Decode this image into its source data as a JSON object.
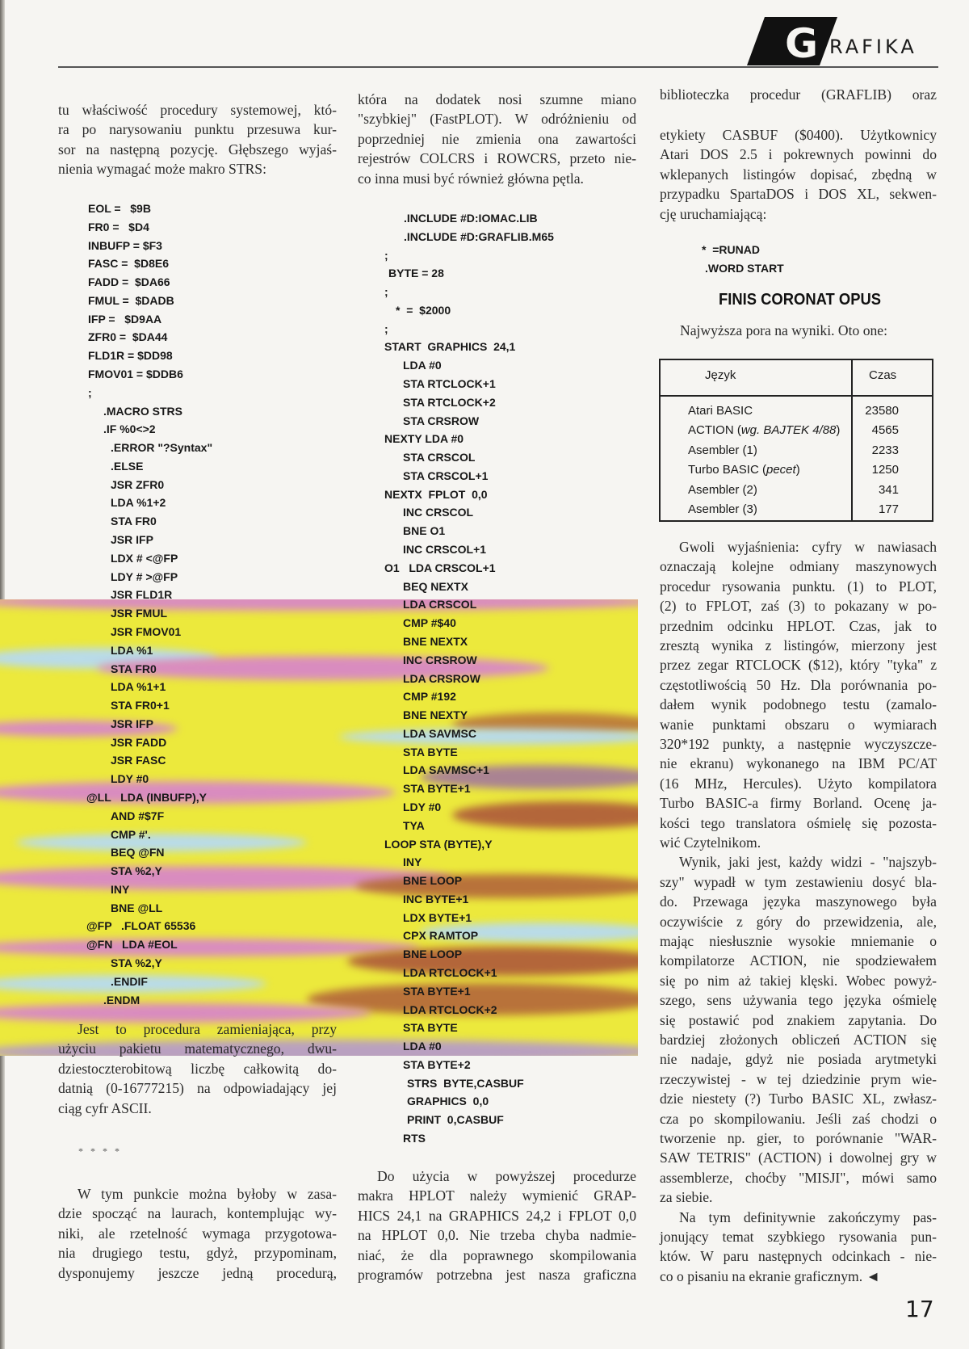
{
  "header": {
    "logo_letter": "G",
    "section": "RAFIKA"
  },
  "col1": {
    "p1": [
      "tu właściwość procedury systemowej, któ-",
      "ra po narysowaniu punktu przesuwa kur-",
      "sor na następną pozycję. Głębszego wyjaś-",
      "nienia wymagać może makro STRS:"
    ],
    "code": [
      "EOL =   $9B",
      "FR0 =   $D4",
      "INBUFP = $F3",
      "FASC =  $D8E6",
      "FADD =  $DA66",
      "FMUL =  $DADB",
      "IFP =   $D9AA",
      "ZFR0 =  $DA44",
      "FLD1R = $DD98",
      "FMOV01 = $DDB6",
      ";",
      ".MACRO STRS",
      ".IF %0<>2",
      ".ERROR \"?Syntax\"",
      ".ELSE",
      "JSR ZFR0",
      "LDA %1+2",
      "STA FR0",
      "JSR IFP",
      "LDX # <@FP",
      "LDY # >@FP",
      "JSR FLD1R",
      "JSR FMUL",
      "JSR FMOV01",
      "LDA %1",
      "STA FR0",
      "LDA %1+1",
      "STA FR0+1",
      "JSR IFP",
      "JSR FADD",
      "JSR FASC",
      "LDY #0",
      "@LL   LDA (INBUFP),Y",
      "AND #$7F",
      "CMP #'.",
      "BEQ @FN",
      "STA %2,Y",
      "INY",
      "BNE @LL",
      "@FP   .FLOAT 65536",
      "@FN   LDA #EOL",
      "STA %2,Y",
      ".ENDIF",
      ".ENDM"
    ],
    "p2": [
      "Jest to procedura zamieniająca, przy",
      "użyciu pakietu matematycznego, dwu-",
      "dziestoczterobitową liczbę całkowitą do-",
      "datnią (0-16777215) na odpowiadający jej",
      "ciąg cyfr ASCII."
    ],
    "separator": "* * * *",
    "p3": [
      "W tym punkcie można byłoby w zasa-",
      "dzie spocząć na laurach, kontemplując wy-",
      "niki, ale rzetelność wymaga przygotowa-",
      "nia drugiego testu, gdyż, przypominam,",
      "dysponujemy jeszcze jedną procedurą,"
    ]
  },
  "col2": {
    "p1": [
      "która na dodatek nosi szumne miano",
      "\"szybkiej\" (FastPLOT). W odróżnieniu od",
      "poprzedniej nie zmienia ona zawartości",
      "rejestrów COLCRS i ROWCRS, przeto nie-",
      "co inna musi być również główna pętla."
    ],
    "code": [
      ".INCLUDE #D:IOMAC.LIB",
      ".INCLUDE #D:GRAFLIB.M65",
      ";",
      "BYTE = 28",
      ";",
      "*  =  $2000",
      ";",
      "START  GRAPHICS  24,1",
      "LDA #0",
      "STA RTCLOCK+1",
      "STA RTCLOCK+2",
      "STA CRSROW",
      "NEXTY LDA #0",
      "STA CRSCOL",
      "STA CRSCOL+1",
      "NEXTX  FPLOT  0,0",
      "INC CRSCOL",
      "BNE O1",
      "INC CRSCOL+1",
      "O1   LDA CRSCOL+1",
      "BEQ NEXTX",
      "LDA CRSCOL",
      "CMP #$40",
      "BNE NEXTX",
      "INC CRSROW",
      "LDA CRSROW",
      "CMP #192",
      "BNE NEXTY",
      "LDA SAVMSC",
      "STA BYTE",
      "LDA SAVMSC+1",
      "STA BYTE+1",
      "LDY #0",
      "TYA",
      "LOOP STA (BYTE),Y",
      "INY",
      "BNE LOOP",
      "INC BYTE+1",
      "LDX BYTE+1",
      "CPX RAMTOP",
      "BNE LOOP",
      "LDA RTCLOCK+1",
      "STA BYTE+1",
      "LDA RTCLOCK+2",
      "STA BYTE",
      "LDA #0",
      "STA BYTE+2",
      "STRS  BYTE,CASBUF",
      "GRAPHICS  0,0",
      "PRINT  0,CASBUF",
      "RTS"
    ],
    "p2": [
      "Do użycia w powyższej procedurze",
      "makra HPLOT należy wymienić GRAP-",
      "HICS 24,1 na GRAPHICS 24,2 i FPLOT 0,0",
      "na HPLOT 0,0. Nie trzeba chyba nadmie-",
      "niać, że dla poprawnego skompilowania",
      "programów potrzebna jest nasza graficzna"
    ]
  },
  "col3": {
    "p0": [
      "biblioteczka procedur (GRAFLIB) oraz"
    ],
    "p1": [
      "etykiety CASBUF ($0400). Użytkownicy",
      "Atari DOS 2.5 i pokrewnych powinni do",
      "wklepanych listingów dopisać, zbędną w",
      "przypadku SpartaDOS i DOS XL, sekwen-",
      "cję uruchamiającą:"
    ],
    "code": [
      "*  =RUNAD",
      ".WORD START"
    ],
    "heading": "FINIS CORONAT OPUS",
    "intro": [
      "Najwyższa pora na wyniki. Oto one:"
    ],
    "table": {
      "headers": [
        "Język",
        "Czas"
      ],
      "rows": [
        {
          "lang": "Atari BASIC",
          "note": "",
          "time": "23580"
        },
        {
          "lang": "ACTION (",
          "note": "wg. BAJTEK 4/88",
          "close": ")",
          "time": "4565"
        },
        {
          "lang": "Asembler (1)",
          "note": "",
          "time": "2233"
        },
        {
          "lang": "Turbo BASIC (",
          "note": "pecet",
          "close": ")",
          "time": "1250"
        },
        {
          "lang": "Asembler (2)",
          "note": "",
          "time": "341"
        },
        {
          "lang": "Asembler (3)",
          "note": "",
          "time": "177"
        }
      ]
    },
    "p2": [
      "Gwoli wyjaśnienia: cyfry w nawiasach",
      "oznaczają kolejne odmiany maszynowych",
      "procedur rysowania punktu. (1) to PLOT,",
      "(2) to FPLOT, zaś (3) to pokazany w po-",
      "przednim odcinku HPLOT. Czas, jak to",
      "zresztą wynika z listingów, mierzony jest",
      "przez zegar RTCLOCK ($12), który \"tyka\" z",
      "częstotliwością 50 Hz. Dla porównania po-",
      "dałem wynik podobnego testu (zamalo-",
      "wanie punktami obszaru o wymiarach",
      "320*192 punkty, a następnie wyczyszcze-",
      "nie ekranu) wykonanego na IBM PC/AT",
      "(16 MHz, Hercules). Użyto kompilatora",
      "Turbo BASIC-a firmy Borland. Ocenę ja-",
      "kości tego translatora ośmielę się pozosta-",
      "wić Czytelnikom."
    ],
    "p3": [
      "Wynik, jaki jest, każdy widzi - \"najszyb-",
      "szy\" wypadł w tym zestawieniu dosyć bla-",
      "do. Przewaga języka maszynowego była",
      "oczywiście z góry do przewidzenia, ale,",
      "mając niesłusznie wysokie mniemanie o",
      "kompilatorze ACTION, nie spodziewałem",
      "się po nim aż takiej klęski. Wobec powyż-",
      "szego, sens używania tego języka ośmielę",
      "się postawić pod znakiem zapytania. Do",
      "bardziej złożonych obliczeń ACTION się",
      "nie nadaje, gdyż nie posiada arytmetyki",
      "rzeczywistej - w tej dziedzinie prym wie-",
      "dzie niestety (?) Turbo BASIC XL, zwłasz-",
      "cza po skompilowaniu. Jeśli zaś chodzi o",
      "tworzenie np. gier, to porównanie \"WAR-",
      "SAW TETRIS\" (ACTION) i dowolnej gry w",
      "assemblerze, choćby \"MISJI\", mówi samo",
      "za siebie."
    ],
    "p4": [
      "Na tym definitywnie zakończymy pas-",
      "jonujący temat szybkiego rysowania pun-",
      "któw. W paru następnych odcinkach - nie-",
      "co o pisaniu na ekranie graficznym. ◄"
    ]
  },
  "page_number": "17",
  "colors": {
    "band_yellow": "#ece93c",
    "band_pink": "#d98cbf",
    "band_blue": "#b9dbe8",
    "band_brown": "#b3663a"
  }
}
